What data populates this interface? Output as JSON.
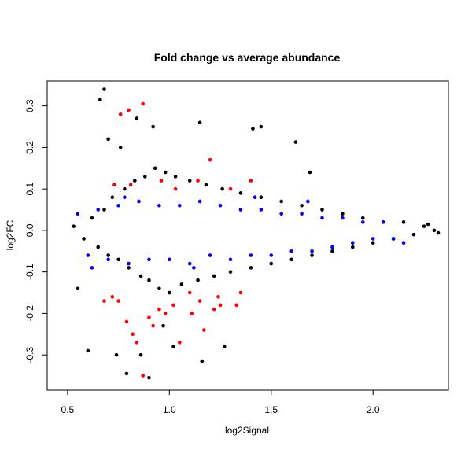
{
  "chart_data": {
    "type": "scatter",
    "title": "Fold change vs average abundance",
    "xlabel": "log2Signal",
    "ylabel": "log2FC",
    "xlim": [
      0.4,
      2.37
    ],
    "ylim": [
      -0.385,
      0.36
    ],
    "xticks": [
      0.5,
      1.0,
      1.5,
      2.0
    ],
    "xtick_labels": [
      "0.5",
      "1.0",
      "1.5",
      "2.0"
    ],
    "yticks": [
      -0.3,
      -0.2,
      -0.1,
      0.0,
      0.1,
      0.2,
      0.3
    ],
    "ytick_labels": [
      "-0.3",
      "-0.2",
      "-0.1",
      "0.0",
      "0.1",
      "0.2",
      "0.3"
    ],
    "grid": false,
    "legend": "none",
    "series": [
      {
        "color": "#000000",
        "x": [
          0.53,
          0.58,
          0.62,
          0.65,
          0.68,
          0.7,
          0.72,
          0.75,
          0.78,
          0.8,
          0.83,
          0.86,
          0.88,
          0.9,
          0.93,
          0.95,
          0.98,
          1.0,
          1.03,
          1.06,
          1.1,
          1.14,
          1.18,
          1.22,
          1.26,
          1.3,
          1.35,
          1.4,
          1.45,
          1.5,
          1.55,
          1.6,
          1.65,
          1.7,
          1.75,
          1.8,
          1.85,
          1.9,
          1.95,
          2.0,
          2.05,
          2.1,
          2.15,
          2.2,
          2.25,
          2.3,
          0.68,
          0.66,
          0.84,
          0.92,
          1.15,
          1.45,
          1.62,
          1.41,
          0.79,
          0.9,
          1.16,
          0.74,
          0.86,
          1.02,
          1.27,
          0.55,
          0.6,
          1.69,
          2.32,
          2.27,
          0.7,
          0.76,
          0.97
        ],
        "y": [
          0.01,
          -0.02,
          0.03,
          -0.04,
          0.05,
          -0.06,
          0.08,
          -0.07,
          0.1,
          -0.09,
          0.12,
          -0.11,
          0.13,
          -0.12,
          0.15,
          -0.14,
          0.14,
          -0.15,
          0.13,
          -0.13,
          0.12,
          -0.12,
          0.11,
          -0.11,
          0.1,
          -0.1,
          0.09,
          -0.09,
          0.08,
          -0.08,
          0.07,
          -0.07,
          0.06,
          -0.06,
          0.05,
          -0.05,
          0.04,
          -0.04,
          0.03,
          -0.03,
          0.02,
          -0.02,
          0.02,
          -0.01,
          0.01,
          0.0,
          0.34,
          0.315,
          0.27,
          0.25,
          0.26,
          0.25,
          0.213,
          0.245,
          -0.345,
          -0.355,
          -0.315,
          -0.3,
          -0.3,
          -0.28,
          -0.28,
          -0.14,
          -0.29,
          0.14,
          -0.006,
          0.015,
          0.22,
          0.2,
          -0.23
        ]
      },
      {
        "color": "#0000ff",
        "x": [
          0.55,
          0.6,
          0.65,
          0.7,
          0.75,
          0.8,
          0.85,
          0.9,
          0.95,
          1.0,
          1.05,
          1.1,
          1.15,
          1.2,
          1.25,
          1.3,
          1.35,
          1.4,
          1.45,
          1.5,
          1.55,
          1.6,
          1.65,
          1.7,
          1.75,
          1.8,
          1.85,
          1.9,
          1.95,
          2.0,
          2.05,
          2.1,
          2.15,
          0.62,
          0.78,
          1.12,
          1.42,
          1.68
        ],
        "y": [
          0.04,
          -0.06,
          0.05,
          -0.07,
          0.06,
          -0.08,
          0.07,
          -0.07,
          0.06,
          -0.07,
          0.06,
          -0.08,
          0.07,
          -0.06,
          0.06,
          -0.07,
          0.05,
          -0.06,
          0.05,
          -0.06,
          0.04,
          -0.05,
          0.04,
          -0.05,
          0.03,
          -0.04,
          0.03,
          -0.03,
          0.02,
          -0.02,
          0.02,
          -0.02,
          -0.03,
          -0.09,
          0.08,
          -0.09,
          0.08,
          0.07
        ]
      },
      {
        "color": "#ff0000",
        "x": [
          0.68,
          0.72,
          0.76,
          0.8,
          0.84,
          0.87,
          0.9,
          0.95,
          0.98,
          1.02,
          1.05,
          1.1,
          1.15,
          1.2,
          1.25,
          1.3,
          1.35,
          1.4,
          0.73,
          0.79,
          0.82,
          0.87,
          0.92,
          0.96,
          1.03,
          1.11,
          1.17,
          1.24,
          1.33,
          0.75,
          0.81,
          1.14,
          1.22
        ],
        "y": [
          -0.17,
          -0.16,
          0.28,
          0.29,
          -0.27,
          0.305,
          -0.21,
          -0.19,
          -0.2,
          -0.18,
          -0.27,
          -0.15,
          -0.17,
          0.17,
          -0.18,
          0.1,
          -0.15,
          0.12,
          0.11,
          -0.22,
          -0.25,
          -0.35,
          -0.23,
          0.12,
          0.1,
          -0.2,
          -0.24,
          -0.16,
          -0.18,
          -0.17,
          0.11,
          0.12,
          -0.19
        ]
      }
    ]
  }
}
